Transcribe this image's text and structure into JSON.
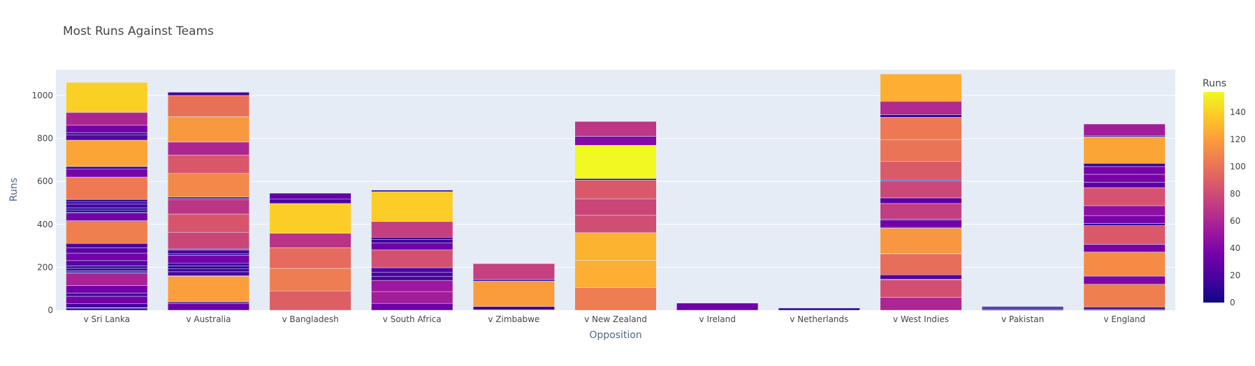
{
  "chart_data": {
    "type": "bar",
    "mode": "stacked",
    "title": "Most Runs Against Teams",
    "xlabel": "Opposition",
    "ylabel": "Runs",
    "ylim": [
      0,
      1120
    ],
    "yticks": [
      0,
      200,
      400,
      600,
      800,
      1000
    ],
    "grid": true,
    "colorbar": {
      "title": "Runs",
      "range": [
        0,
        155
      ],
      "ticks": [
        0,
        20,
        40,
        60,
        80,
        100,
        120,
        140
      ],
      "colors": [
        "#0d0887",
        "#46039f",
        "#7201a8",
        "#9c179e",
        "#bd3786",
        "#d8576b",
        "#ed7953",
        "#fb9f3a",
        "#fdca26",
        "#f0f921"
      ]
    },
    "categories": [
      "v Sri Lanka",
      "v Australia",
      "v Bangladesh",
      "v South Africa",
      "v Zimbabwe",
      "v New Zealand",
      "v Ireland",
      "v Netherlands",
      "v West Indies",
      "v Pakistan",
      "v England"
    ],
    "segments": [
      [
        10,
        2,
        18,
        35,
        15,
        35,
        58,
        1,
        8,
        1,
        12,
        11,
        25,
        35,
        25,
        20,
        106,
        35,
        5,
        10,
        10,
        17,
        10,
        12,
        104,
        37,
        12,
        123,
        24,
        10,
        35,
        60,
        140
      ],
      [
        31,
        7,
        120,
        3,
        18,
        15,
        12,
        14,
        35,
        8,
        17,
        1,
        5,
        77,
        85,
        68,
        5,
        6,
        110,
        86,
        60,
        118,
        99,
        15
      ],
      [
        90,
        105,
        96,
        67,
        139,
        20,
        28
      ],
      [
        32,
        55,
        52,
        19,
        18,
        22,
        83,
        33,
        15,
        11,
        73,
        139,
        7
      ],
      [
        2,
        15,
        119,
        7,
        74
      ],
      [
        105,
        127,
        129,
        81,
        77,
        87,
        7,
        155,
        42,
        69
      ],
      [
        33
      ],
      [
        10
      ],
      [
        60,
        82,
        3,
        20,
        98,
        2,
        117,
        4,
        34,
        5,
        72,
        26,
        78,
        5,
        88,
        101,
        103,
        13,
        62,
        127
      ],
      [
        5,
        7,
        5
      ],
      [
        5,
        10,
        106,
        38,
        112,
        36,
        87,
        10,
        37,
        46,
        84,
        25,
        37,
        36,
        15,
        123,
        5,
        55
      ]
    ]
  }
}
